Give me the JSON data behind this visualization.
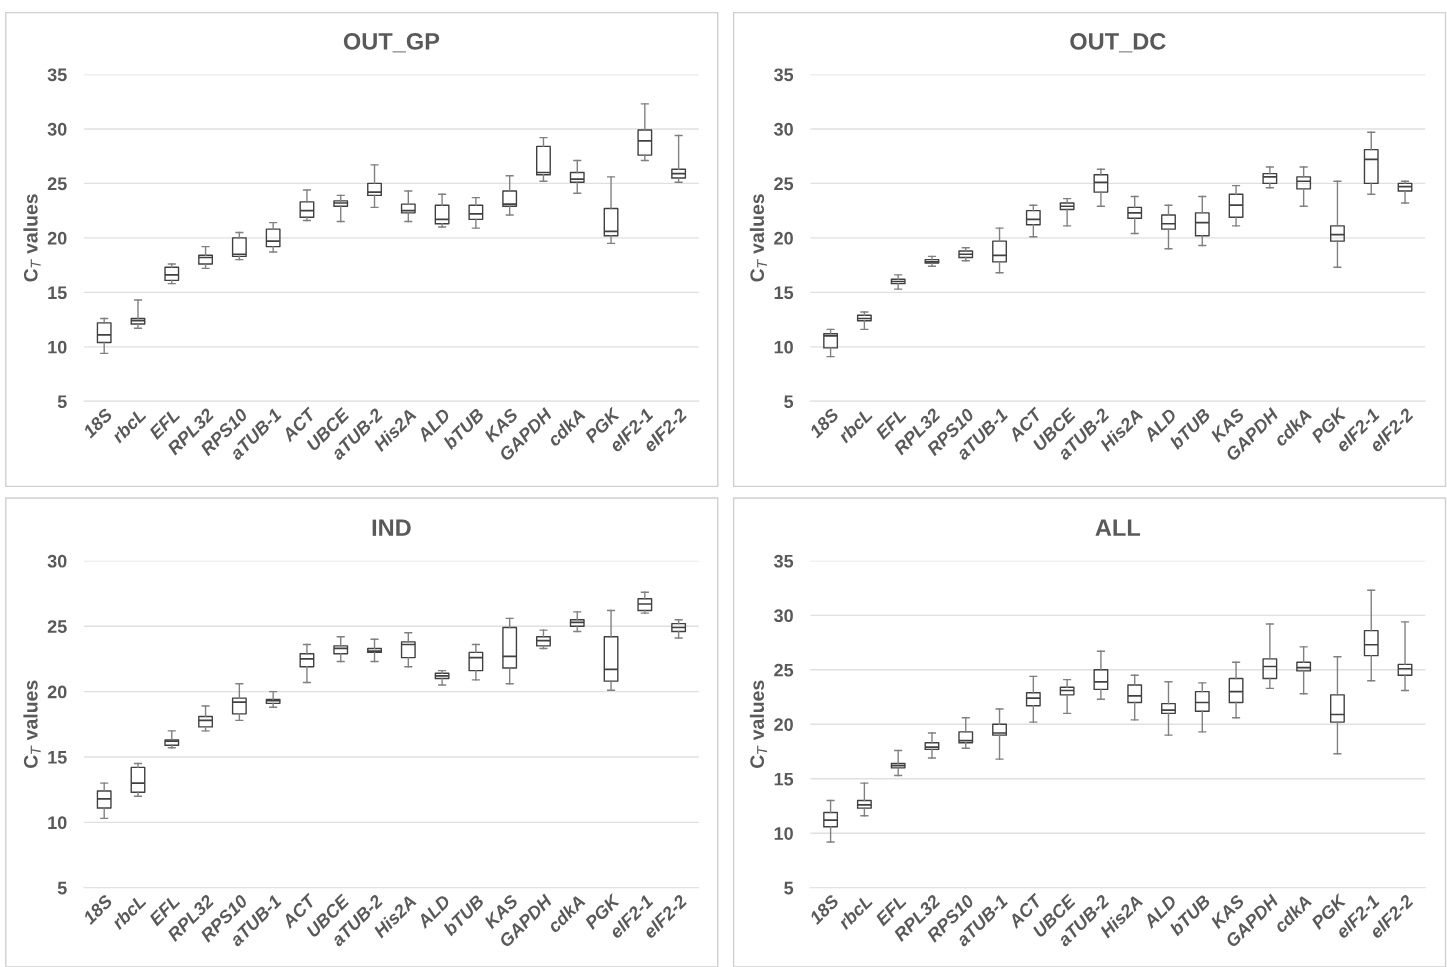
{
  "chart_data": [
    {
      "type": "box",
      "title": "OUT_GP",
      "ylabel": "C$_{T}$ values",
      "ylim": [
        5,
        35
      ],
      "yticks": [
        5,
        10,
        15,
        20,
        25,
        30,
        35
      ],
      "grid": "y",
      "categories": [
        "18S",
        "rbcL",
        "EFL",
        "RPL32",
        "RPS10",
        "aTUB-1",
        "ACT",
        "UBCE",
        "aTUB-2",
        "His2A",
        "ALD",
        "bTUB",
        "KAS",
        "GAPDH",
        "cdkA",
        "PGK",
        "eIF2-1",
        "eIF2-2"
      ],
      "boxes": [
        {
          "low": 9.4,
          "q1": 10.4,
          "median": 11.1,
          "q3": 12.2,
          "high": 12.6
        },
        {
          "low": 11.7,
          "q1": 12.1,
          "median": 12.4,
          "q3": 12.6,
          "high": 14.3
        },
        {
          "low": 15.8,
          "q1": 16.1,
          "median": 16.6,
          "q3": 17.3,
          "high": 17.6
        },
        {
          "low": 17.2,
          "q1": 17.6,
          "median": 18.2,
          "q3": 18.4,
          "high": 19.2
        },
        {
          "low": 18.0,
          "q1": 18.3,
          "median": 18.5,
          "q3": 20.0,
          "high": 20.5
        },
        {
          "low": 18.7,
          "q1": 19.2,
          "median": 19.7,
          "q3": 20.8,
          "high": 21.4
        },
        {
          "low": 21.6,
          "q1": 21.9,
          "median": 22.5,
          "q3": 23.3,
          "high": 24.4
        },
        {
          "low": 21.5,
          "q1": 22.9,
          "median": 23.2,
          "q3": 23.4,
          "high": 23.9
        },
        {
          "low": 22.8,
          "q1": 23.9,
          "median": 24.2,
          "q3": 25.0,
          "high": 26.7
        },
        {
          "low": 21.5,
          "q1": 22.3,
          "median": 22.5,
          "q3": 23.1,
          "high": 24.3
        },
        {
          "low": 21.0,
          "q1": 21.3,
          "median": 21.7,
          "q3": 23.0,
          "high": 24.0
        },
        {
          "low": 20.9,
          "q1": 21.7,
          "median": 22.2,
          "q3": 23.0,
          "high": 23.7
        },
        {
          "low": 22.1,
          "q1": 22.9,
          "median": 23.1,
          "q3": 24.3,
          "high": 25.7
        },
        {
          "low": 25.2,
          "q1": 25.8,
          "median": 26.0,
          "q3": 28.4,
          "high": 29.2
        },
        {
          "low": 24.1,
          "q1": 25.1,
          "median": 25.4,
          "q3": 26.0,
          "high": 27.1
        },
        {
          "low": 19.5,
          "q1": 20.2,
          "median": 20.6,
          "q3": 22.7,
          "high": 25.6
        },
        {
          "low": 27.1,
          "q1": 27.6,
          "median": 28.9,
          "q3": 29.9,
          "high": 32.3
        },
        {
          "low": 25.1,
          "q1": 25.5,
          "median": 25.9,
          "q3": 26.3,
          "high": 29.4
        }
      ]
    },
    {
      "type": "box",
      "title": "OUT_DC",
      "ylabel": "C$_{T}$ values",
      "ylim": [
        5,
        35
      ],
      "yticks": [
        5,
        10,
        15,
        20,
        25,
        30,
        35
      ],
      "grid": "y",
      "categories": [
        "18S",
        "rbcL",
        "EFL",
        "RPL32",
        "RPS10",
        "aTUB-1",
        "ACT",
        "UBCE",
        "aTUB-2",
        "His2A",
        "ALD",
        "bTUB",
        "KAS",
        "GAPDH",
        "cdkA",
        "PGK",
        "eIF2-1",
        "eIF2-2"
      ],
      "boxes": [
        {
          "low": 9.1,
          "q1": 9.9,
          "median": 11.0,
          "q3": 11.2,
          "high": 11.6
        },
        {
          "low": 11.6,
          "q1": 12.4,
          "median": 12.6,
          "q3": 12.9,
          "high": 13.2
        },
        {
          "low": 15.3,
          "q1": 15.8,
          "median": 16.0,
          "q3": 16.2,
          "high": 16.6
        },
        {
          "low": 17.4,
          "q1": 17.7,
          "median": 17.8,
          "q3": 18.0,
          "high": 18.3
        },
        {
          "low": 17.9,
          "q1": 18.2,
          "median": 18.5,
          "q3": 18.8,
          "high": 19.1
        },
        {
          "low": 16.8,
          "q1": 17.8,
          "median": 18.4,
          "q3": 19.7,
          "high": 20.9
        },
        {
          "low": 20.1,
          "q1": 21.2,
          "median": 21.7,
          "q3": 22.5,
          "high": 23.0
        },
        {
          "low": 21.1,
          "q1": 22.6,
          "median": 22.9,
          "q3": 23.2,
          "high": 23.6
        },
        {
          "low": 22.9,
          "q1": 24.2,
          "median": 25.1,
          "q3": 25.8,
          "high": 26.3
        },
        {
          "low": 20.4,
          "q1": 21.8,
          "median": 22.3,
          "q3": 22.8,
          "high": 23.8
        },
        {
          "low": 19.0,
          "q1": 20.8,
          "median": 21.3,
          "q3": 22.1,
          "high": 23.0
        },
        {
          "low": 19.3,
          "q1": 20.2,
          "median": 21.4,
          "q3": 22.3,
          "high": 23.8
        },
        {
          "low": 21.1,
          "q1": 21.9,
          "median": 23.0,
          "q3": 24.0,
          "high": 24.8
        },
        {
          "low": 24.6,
          "q1": 25.0,
          "median": 25.6,
          "q3": 25.9,
          "high": 26.5
        },
        {
          "low": 22.9,
          "q1": 24.5,
          "median": 25.2,
          "q3": 25.6,
          "high": 26.5
        },
        {
          "low": 17.3,
          "q1": 19.7,
          "median": 20.3,
          "q3": 21.1,
          "high": 25.2
        },
        {
          "low": 24.0,
          "q1": 25.0,
          "median": 27.2,
          "q3": 28.1,
          "high": 29.7
        },
        {
          "low": 23.2,
          "q1": 24.3,
          "median": 24.7,
          "q3": 25.0,
          "high": 25.2
        }
      ]
    },
    {
      "type": "box",
      "title": "IND",
      "ylabel": "C$_{T}$ values",
      "ylim": [
        5,
        30
      ],
      "yticks": [
        5,
        10,
        15,
        20,
        25,
        30
      ],
      "grid": "y",
      "categories": [
        "18S",
        "rbcL",
        "EFL",
        "RPL32",
        "RPS10",
        "aTUB-1",
        "ACT",
        "UBCE",
        "aTUB-2",
        "His2A",
        "ALD",
        "bTUB",
        "KAS",
        "GAPDH",
        "cdkA",
        "PGK",
        "eIF2-1",
        "eIF2-2"
      ],
      "boxes": [
        {
          "low": 10.3,
          "q1": 11.1,
          "median": 11.8,
          "q3": 12.4,
          "high": 13.0
        },
        {
          "low": 12.0,
          "q1": 12.3,
          "median": 13.0,
          "q3": 14.2,
          "high": 14.5
        },
        {
          "low": 15.7,
          "q1": 15.9,
          "median": 16.2,
          "q3": 16.3,
          "high": 17.0
        },
        {
          "low": 17.0,
          "q1": 17.3,
          "median": 17.8,
          "q3": 18.1,
          "high": 18.9
        },
        {
          "low": 17.8,
          "q1": 18.3,
          "median": 19.2,
          "q3": 19.5,
          "high": 20.6
        },
        {
          "low": 18.8,
          "q1": 19.1,
          "median": 19.3,
          "q3": 19.4,
          "high": 20.0
        },
        {
          "low": 20.7,
          "q1": 21.9,
          "median": 22.5,
          "q3": 22.9,
          "high": 23.6
        },
        {
          "low": 22.3,
          "q1": 22.9,
          "median": 23.3,
          "q3": 23.5,
          "high": 24.2
        },
        {
          "low": 22.3,
          "q1": 23.0,
          "median": 23.1,
          "q3": 23.3,
          "high": 24.0
        },
        {
          "low": 21.9,
          "q1": 22.6,
          "median": 23.6,
          "q3": 23.8,
          "high": 24.5
        },
        {
          "low": 20.5,
          "q1": 21.0,
          "median": 21.2,
          "q3": 21.4,
          "high": 21.6
        },
        {
          "low": 20.9,
          "q1": 21.6,
          "median": 22.6,
          "q3": 23.0,
          "high": 23.6
        },
        {
          "low": 20.6,
          "q1": 21.8,
          "median": 22.7,
          "q3": 24.9,
          "high": 25.6
        },
        {
          "low": 23.3,
          "q1": 23.5,
          "median": 23.9,
          "q3": 24.2,
          "high": 24.7
        },
        {
          "low": 24.6,
          "q1": 25.0,
          "median": 25.3,
          "q3": 25.5,
          "high": 26.1
        },
        {
          "low": 20.1,
          "q1": 20.8,
          "median": 21.7,
          "q3": 24.2,
          "high": 26.2
        },
        {
          "low": 26.0,
          "q1": 26.2,
          "median": 26.7,
          "q3": 27.1,
          "high": 27.6
        },
        {
          "low": 24.1,
          "q1": 24.6,
          "median": 24.9,
          "q3": 25.2,
          "high": 25.5
        }
      ]
    },
    {
      "type": "box",
      "title": "ALL",
      "ylabel": "C$_{T}$ values",
      "ylim": [
        5,
        35
      ],
      "yticks": [
        5,
        10,
        15,
        20,
        25,
        30,
        35
      ],
      "grid": "y",
      "categories": [
        "18S",
        "rbcL",
        "EFL",
        "RPL32",
        "RPS10",
        "aTUB-1",
        "ACT",
        "UBCE",
        "aTUB-2",
        "His2A",
        "ALD",
        "bTUB",
        "KAS",
        "GAPDH",
        "cdkA",
        "PGK",
        "eIF2-1",
        "eIF2-2"
      ],
      "boxes": [
        {
          "low": 9.2,
          "q1": 10.6,
          "median": 11.2,
          "q3": 11.9,
          "high": 13.0
        },
        {
          "low": 11.6,
          "q1": 12.3,
          "median": 12.6,
          "q3": 13.0,
          "high": 14.6
        },
        {
          "low": 15.3,
          "q1": 16.0,
          "median": 16.2,
          "q3": 16.4,
          "high": 17.6
        },
        {
          "low": 16.9,
          "q1": 17.7,
          "median": 17.9,
          "q3": 18.3,
          "high": 19.2
        },
        {
          "low": 17.8,
          "q1": 18.3,
          "median": 18.5,
          "q3": 19.3,
          "high": 20.6
        },
        {
          "low": 16.8,
          "q1": 19.0,
          "median": 19.2,
          "q3": 20.0,
          "high": 21.4
        },
        {
          "low": 20.2,
          "q1": 21.7,
          "median": 22.4,
          "q3": 22.9,
          "high": 24.4
        },
        {
          "low": 21.0,
          "q1": 22.7,
          "median": 23.1,
          "q3": 23.4,
          "high": 24.1
        },
        {
          "low": 22.3,
          "q1": 23.2,
          "median": 23.9,
          "q3": 25.0,
          "high": 26.7
        },
        {
          "low": 20.4,
          "q1": 22.0,
          "median": 22.6,
          "q3": 23.6,
          "high": 24.5
        },
        {
          "low": 19.0,
          "q1": 21.0,
          "median": 21.3,
          "q3": 21.9,
          "high": 23.9
        },
        {
          "low": 19.3,
          "q1": 21.2,
          "median": 22.0,
          "q3": 23.0,
          "high": 23.8
        },
        {
          "low": 20.6,
          "q1": 22.0,
          "median": 23.0,
          "q3": 24.2,
          "high": 25.7
        },
        {
          "low": 23.3,
          "q1": 24.2,
          "median": 25.3,
          "q3": 26.0,
          "high": 29.2
        },
        {
          "low": 22.8,
          "q1": 24.9,
          "median": 25.2,
          "q3": 25.7,
          "high": 27.1
        },
        {
          "low": 17.3,
          "q1": 20.2,
          "median": 20.9,
          "q3": 22.7,
          "high": 26.2
        },
        {
          "low": 24.0,
          "q1": 26.3,
          "median": 27.3,
          "q3": 28.6,
          "high": 32.3
        },
        {
          "low": 23.1,
          "q1": 24.5,
          "median": 25.1,
          "q3": 25.5,
          "high": 29.4
        }
      ]
    }
  ]
}
